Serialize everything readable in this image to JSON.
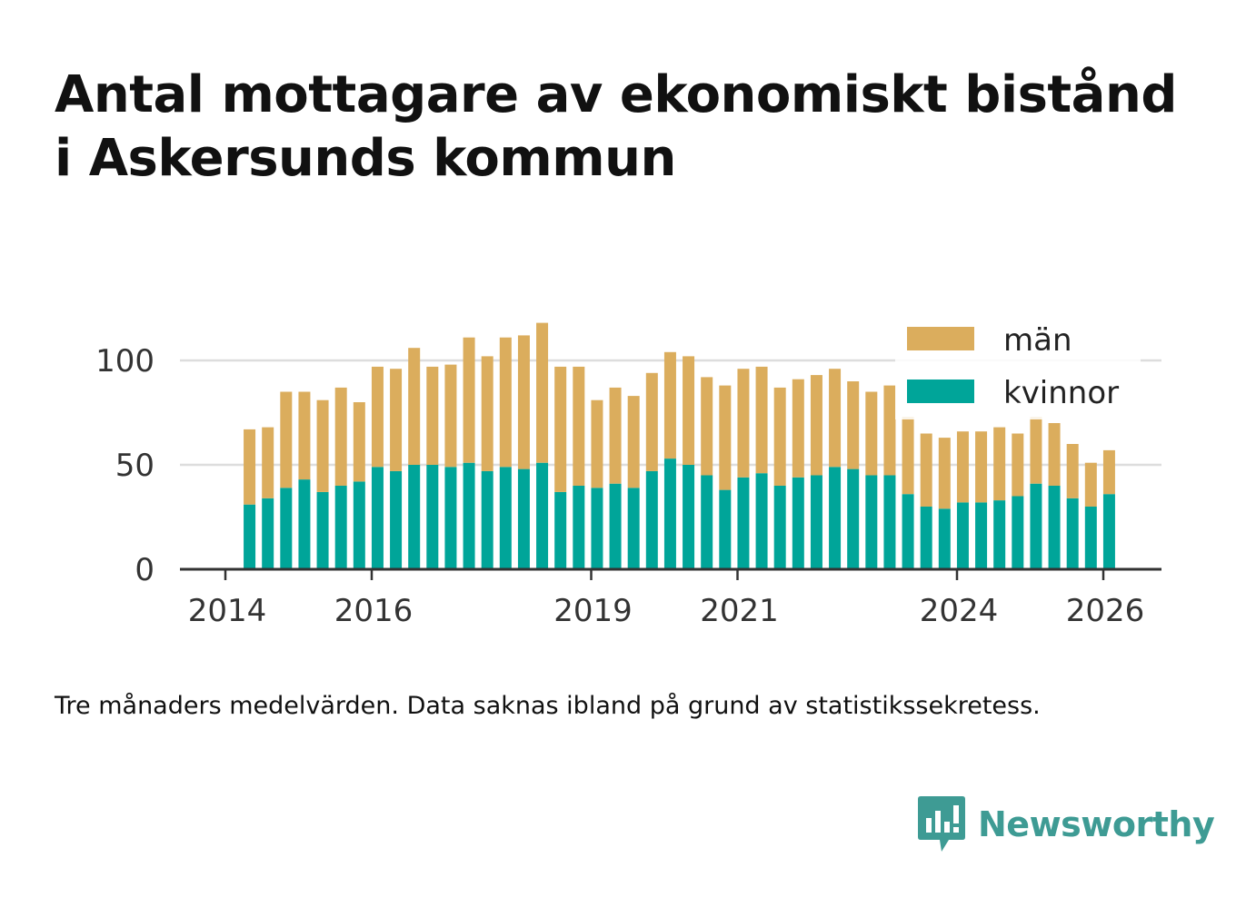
{
  "title_lines": [
    "Antal mottagare av ekonomiskt bistånd",
    "i Askersunds kommun"
  ],
  "note": "Tre månaders medelvärden. Data saknas ibland på grund av statistikssekretess.",
  "brand": {
    "name": "Newsworthy",
    "icon": "newsworthy-logo-icon",
    "color": "#3e9b94"
  },
  "colors": {
    "man": "#dbad5d",
    "kvinnor": "#00a599",
    "grid": "#dddddd",
    "axis": "#333333"
  },
  "chart_data": {
    "type": "bar",
    "stacked": true,
    "title": "Antal mottagare av ekonomiskt bistånd i Askersunds kommun",
    "xlabel": "",
    "ylabel": "",
    "ylim": [
      0,
      120
    ],
    "yticks": [
      0,
      50,
      100
    ],
    "xlim": [
      2014.0,
      2026.4
    ],
    "xticks": [
      2014,
      2016,
      2019,
      2021,
      2024,
      2026
    ],
    "grid": true,
    "legend_position": "top-right",
    "x": [
      2014.33,
      2014.58,
      2014.83,
      2015.08,
      2015.33,
      2015.58,
      2015.83,
      2016.08,
      2016.33,
      2016.58,
      2016.83,
      2017.08,
      2017.33,
      2017.58,
      2017.83,
      2018.08,
      2018.33,
      2018.58,
      2018.83,
      2019.08,
      2019.33,
      2019.58,
      2019.83,
      2020.08,
      2020.33,
      2020.58,
      2020.83,
      2021.08,
      2021.33,
      2021.58,
      2021.83,
      2022.08,
      2022.33,
      2022.58,
      2022.83,
      2023.08,
      2023.33,
      2023.58,
      2023.83,
      2024.08,
      2024.33,
      2024.58,
      2024.83,
      2025.08,
      2025.33,
      2025.58,
      2025.83,
      2026.08
    ],
    "series": [
      {
        "name": "kvinnor",
        "color": "#00a599",
        "values": [
          31,
          34,
          39,
          43,
          37,
          40,
          42,
          49,
          47,
          50,
          50,
          49,
          51,
          47,
          49,
          48,
          51,
          37,
          40,
          39,
          41,
          39,
          47,
          53,
          50,
          45,
          38,
          44,
          46,
          40,
          44,
          45,
          49,
          48,
          45,
          45,
          36,
          30,
          29,
          32,
          32,
          33,
          35,
          41,
          40,
          34,
          30,
          36
        ]
      },
      {
        "name": "män",
        "color": "#dbad5d",
        "values": [
          36,
          34,
          46,
          42,
          44,
          47,
          38,
          48,
          49,
          56,
          47,
          49,
          60,
          55,
          62,
          64,
          67,
          60,
          57,
          42,
          46,
          44,
          47,
          51,
          52,
          47,
          50,
          52,
          51,
          47,
          47,
          48,
          47,
          42,
          40,
          43,
          37,
          35,
          34,
          34,
          34,
          35,
          30,
          32,
          30,
          26,
          21,
          21
        ]
      }
    ]
  }
}
